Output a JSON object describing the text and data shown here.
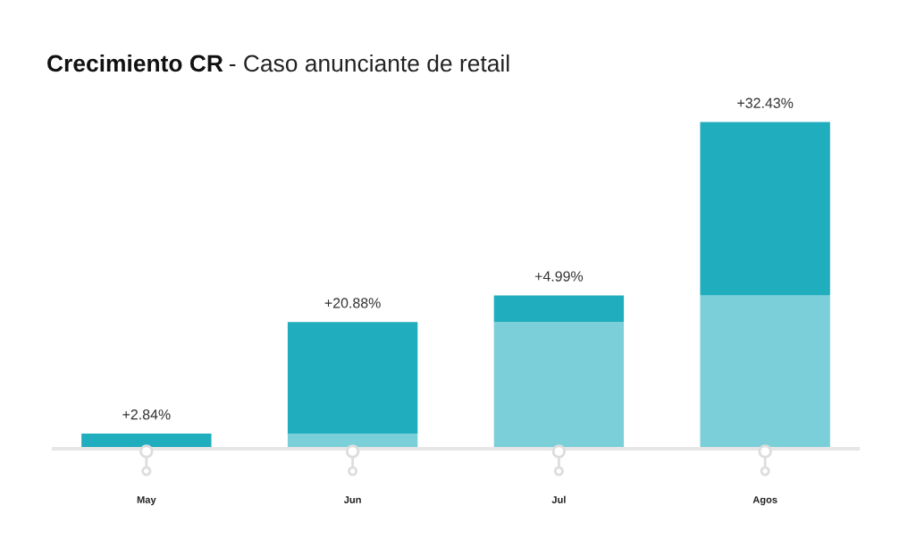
{
  "chart_data": {
    "type": "bar",
    "stacked": true,
    "title": "Crecimiento CR",
    "subtitle": "- Caso anunciante de retail",
    "categories": [
      "May",
      "Jun",
      "Jul",
      "Agos"
    ],
    "series": [
      {
        "color": "#7bcfd8",
        "values": [
          0,
          2.84,
          23.72,
          28.71
        ]
      },
      {
        "color": "#20adbd",
        "values": [
          2.84,
          20.88,
          4.99,
          32.43
        ],
        "value_labels": [
          "+2.84%",
          "+20.88%",
          "+4.99%",
          "+32.43%"
        ]
      }
    ]
  }
}
